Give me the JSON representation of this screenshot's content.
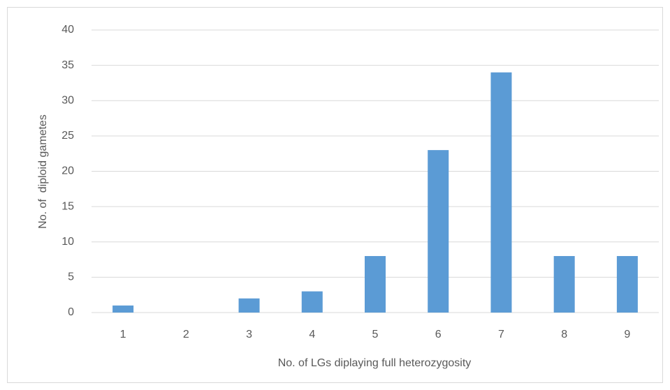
{
  "chart_data": {
    "type": "bar",
    "x_label": "No. of LGs diplaying full heterozygosity",
    "y_label": "No. of  diploid gametes",
    "categories": [
      "1",
      "2",
      "3",
      "4",
      "5",
      "6",
      "7",
      "8",
      "9"
    ],
    "values": [
      1,
      0,
      2,
      3,
      8,
      23,
      34,
      8,
      8
    ],
    "color": "#5b9bd5",
    "ylim": [
      0,
      40
    ],
    "yticks": [
      0,
      5,
      10,
      15,
      20,
      25,
      30,
      35,
      40
    ],
    "grid": true
  }
}
